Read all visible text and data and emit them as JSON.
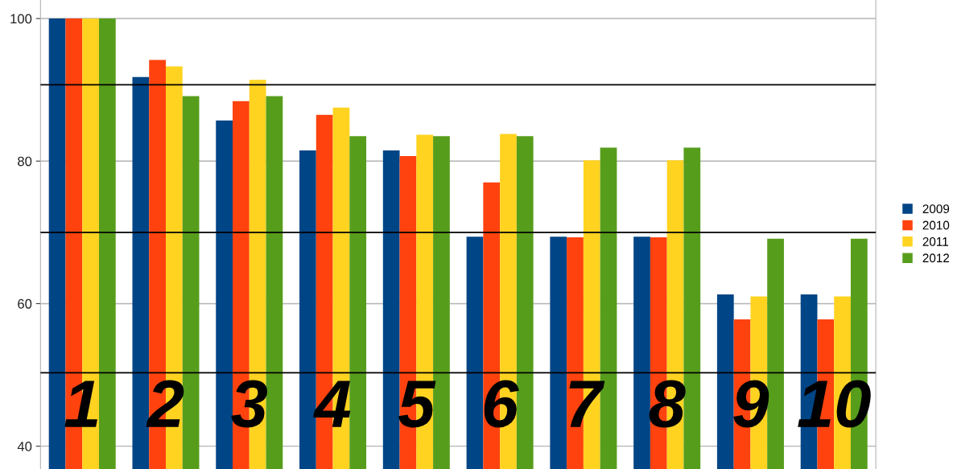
{
  "chart_data": {
    "type": "bar",
    "categories": [
      "1",
      "2",
      "3",
      "4",
      "5",
      "6",
      "7",
      "8",
      "9",
      "10"
    ],
    "series": [
      {
        "name": "2009",
        "color": "#004586",
        "values": [
          100,
          91.8,
          85.7,
          81.5,
          81.5,
          69.4,
          69.4,
          69.4,
          61.3,
          61.3
        ]
      },
      {
        "name": "2010",
        "color": "#ff420e",
        "values": [
          100,
          94.2,
          88.4,
          86.5,
          80.7,
          77.0,
          69.3,
          69.3,
          57.8,
          57.8
        ]
      },
      {
        "name": "2011",
        "color": "#ffd320",
        "values": [
          100,
          93.3,
          91.4,
          87.5,
          83.7,
          83.8,
          80.1,
          80.1,
          61.0,
          61.0
        ]
      },
      {
        "name": "2012",
        "color": "#579d1c",
        "values": [
          100,
          89.1,
          89.1,
          83.5,
          83.5,
          83.5,
          81.9,
          81.9,
          69.1,
          69.1
        ]
      }
    ],
    "ylim": [
      36.8,
      102.6
    ],
    "yticks": [
      40,
      60,
      80,
      100
    ],
    "ref_lines": [
      {
        "axis": "y",
        "value": 90.7,
        "color": "#000000"
      },
      {
        "axis": "y",
        "value": 70.0,
        "color": "#000000"
      },
      {
        "axis": "y",
        "value": 50.3,
        "color": "#000000"
      }
    ],
    "grid": "y",
    "legend": "right"
  }
}
